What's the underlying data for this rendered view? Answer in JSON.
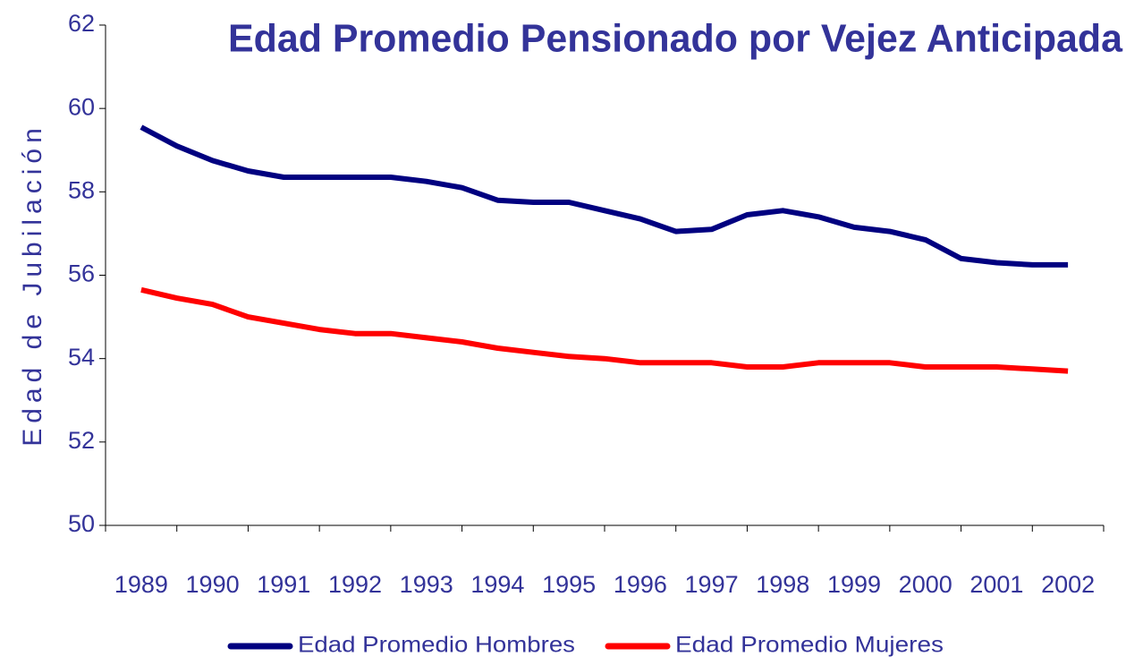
{
  "chart_data": {
    "type": "line",
    "title": "Edad Promedio Pensionado por Vejez Anticipada",
    "y_label": "Edad de Jubilación",
    "categories": [
      "1989",
      null,
      "1990",
      null,
      "1991",
      null,
      "1992",
      null,
      "1993",
      null,
      "1994",
      null,
      "1995",
      null,
      "1996",
      null,
      "1997",
      null,
      "1998",
      null,
      "1999",
      null,
      "2000",
      null,
      "2001",
      null,
      "2002"
    ],
    "series": [
      {
        "name": "Edad Promedio Hombres",
        "color": "#000080",
        "values": [
          59.55,
          59.1,
          58.75,
          58.5,
          58.35,
          58.35,
          58.35,
          58.35,
          58.25,
          58.1,
          57.8,
          57.75,
          57.75,
          57.55,
          57.35,
          57.05,
          57.1,
          57.45,
          57.55,
          57.4,
          57.15,
          57.05,
          56.85,
          56.4,
          56.3,
          56.25,
          56.25
        ]
      },
      {
        "name": "Edad Promedio Mujeres",
        "color": "#ff0000",
        "values": [
          55.65,
          55.45,
          55.3,
          55.0,
          54.85,
          54.7,
          54.6,
          54.6,
          54.5,
          54.4,
          54.25,
          54.15,
          54.05,
          54.0,
          53.9,
          53.9,
          53.9,
          53.8,
          53.8,
          53.9,
          53.9,
          53.9,
          53.8,
          53.8,
          53.8,
          53.75,
          53.7
        ]
      }
    ],
    "ylim": [
      50,
      62
    ],
    "yticks": [
      50,
      52,
      54,
      56,
      58,
      60,
      62
    ],
    "legend": "bottom"
  }
}
